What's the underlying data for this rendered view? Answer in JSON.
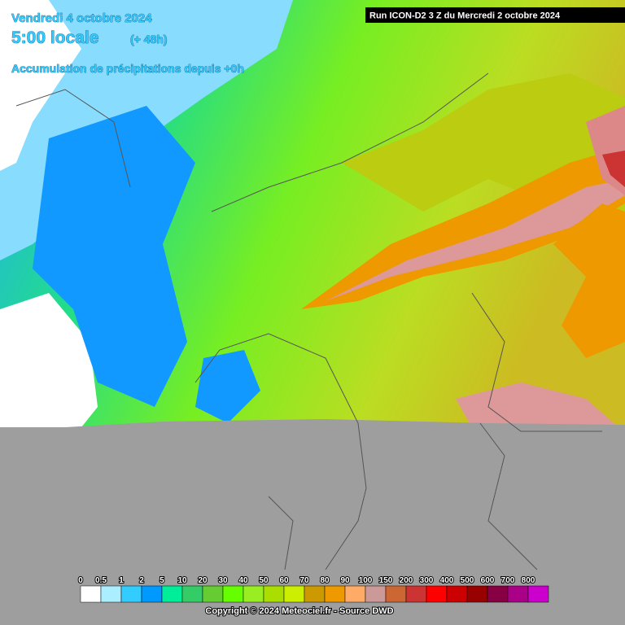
{
  "header": {
    "date": "Vendredi 4 octobre 2024",
    "time": "5:00 locale",
    "lead": "(+ 48h)",
    "subtitle": "Accumulation de précipitations depuis +0h"
  },
  "run": "Run ICON-D2 3 Z du Mercredi 2 octobre 2024",
  "legend": {
    "labels": [
      0,
      0.5,
      1,
      2,
      5,
      10,
      20,
      30,
      40,
      50,
      60,
      70,
      80,
      90,
      100,
      150,
      200,
      300,
      400,
      500,
      600,
      700,
      800
    ],
    "colors": [
      "#ffffff",
      "#aaeeff",
      "#33ccff",
      "#0099ff",
      "#00ee99",
      "#33cc66",
      "#66cc33",
      "#66ff00",
      "#99ee22",
      "#aadd00",
      "#ccee00",
      "#cc9900",
      "#ee9900",
      "#ffaa66",
      "#cc9999",
      "#cc6633",
      "#cc3333",
      "#ff0000",
      "#cc0000",
      "#990000",
      "#880044",
      "#aa0088",
      "#cc00cc"
    ]
  },
  "copyright": "Copyright © 2024 Meteociel.fr - Source DWD"
}
